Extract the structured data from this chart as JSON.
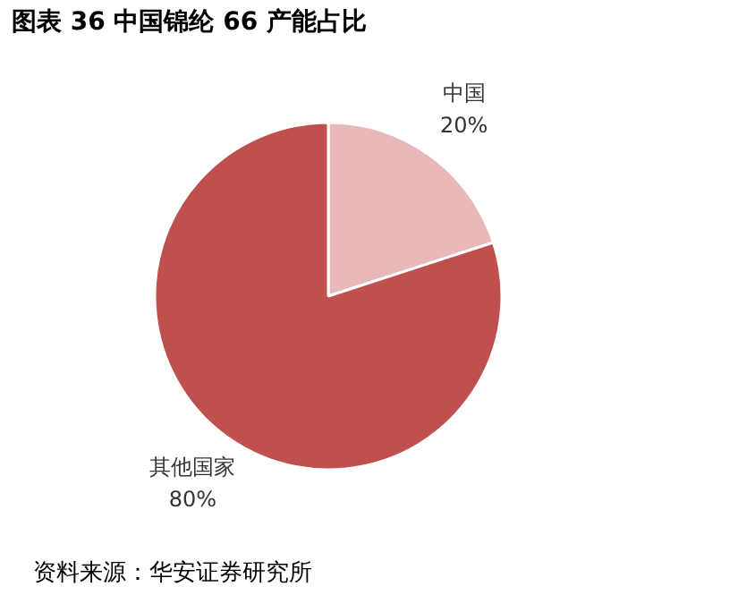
{
  "chart_data": {
    "type": "pie",
    "title": "图表 36 中国锦纶 66 产能占比",
    "categories": [
      "中国",
      "其他国家"
    ],
    "values": [
      20,
      80
    ],
    "colors": [
      "#e8b9b8",
      "#c0504d"
    ],
    "value_labels": [
      "20%",
      "80%"
    ],
    "annotations": [
      "资料来源：华安证券研究所"
    ]
  }
}
